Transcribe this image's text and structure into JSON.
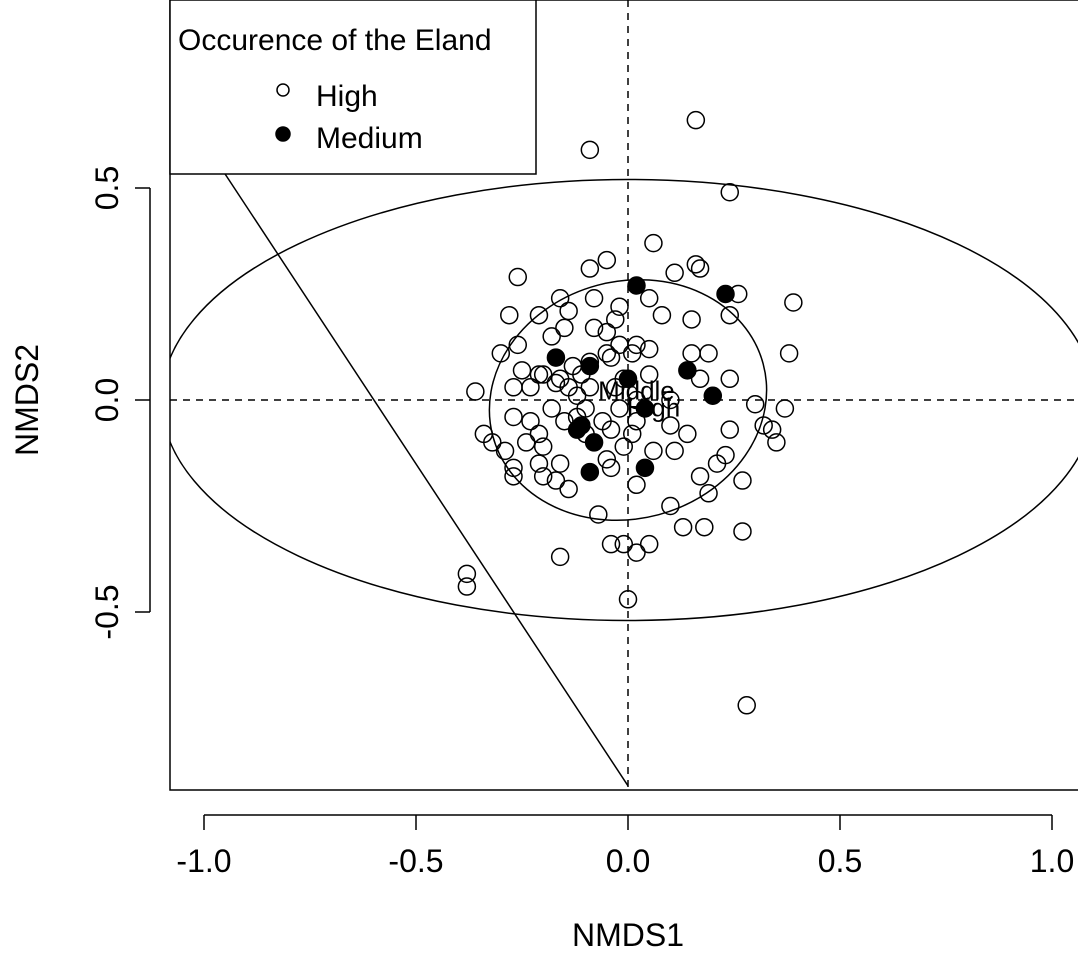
{
  "chart_data": {
    "type": "scatter",
    "title": "",
    "xlabel": "NMDS1",
    "ylabel": "NMDS2",
    "xlim": [
      -1.08,
      1.05
    ],
    "ylim": [
      -0.92,
      0.93
    ],
    "xticks": [
      -1.0,
      -0.5,
      0.0,
      0.5,
      1.0
    ],
    "xtick_labels": [
      "-1.0",
      "-0.5",
      "0.0",
      "0.5",
      "1.0"
    ],
    "yticks": [
      -0.5,
      0.0,
      0.5
    ],
    "ytick_labels": [
      "-0.5",
      "0.0",
      "0.5"
    ],
    "grid": false,
    "legend": {
      "title": "Occurence of the Eland",
      "placement": "top-left",
      "entries": [
        {
          "label": "High",
          "marker": "open-circle"
        },
        {
          "label": "Medium",
          "marker": "filled-circle"
        }
      ]
    },
    "reference_lines": {
      "x": 0.0,
      "y": 0.0,
      "style": "dashed"
    },
    "group_labels": [
      {
        "text": "Middle",
        "x": 0.02,
        "y": 0.02
      },
      {
        "text": "High",
        "x": 0.06,
        "y": -0.02
      }
    ],
    "ellipses": [
      {
        "name": "outer",
        "center": [
          0.0,
          0.0
        ],
        "rx": 1.1,
        "ry": 0.52,
        "angle_deg": 0
      },
      {
        "name": "inner",
        "center": [
          0.0,
          0.0
        ],
        "rx": 0.33,
        "ry": 0.28,
        "angle_deg": 15
      }
    ],
    "segments": [
      {
        "x1": -1.08,
        "y1": 0.73,
        "x2": 0.0,
        "y2": -0.91
      }
    ],
    "legend_box_bottom_y": 0.535,
    "legend_box_right_x": -0.22,
    "series": [
      {
        "name": "High",
        "marker": "open-circle",
        "points": [
          [
            0.16,
            0.66
          ],
          [
            -0.09,
            0.59
          ],
          [
            0.24,
            0.49
          ],
          [
            0.06,
            0.37
          ],
          [
            -0.05,
            0.33
          ],
          [
            0.16,
            0.32
          ],
          [
            0.17,
            0.31
          ],
          [
            -0.09,
            0.31
          ],
          [
            0.11,
            0.3
          ],
          [
            -0.26,
            0.29
          ],
          [
            0.39,
            0.23
          ],
          [
            -0.16,
            0.24
          ],
          [
            -0.08,
            0.24
          ],
          [
            0.05,
            0.24
          ],
          [
            -0.02,
            0.22
          ],
          [
            0.26,
            0.25
          ],
          [
            -0.14,
            0.21
          ],
          [
            0.08,
            0.2
          ],
          [
            -0.28,
            0.2
          ],
          [
            -0.21,
            0.2
          ],
          [
            0.15,
            0.19
          ],
          [
            0.24,
            0.2
          ],
          [
            -0.15,
            0.17
          ],
          [
            -0.08,
            0.17
          ],
          [
            -0.03,
            0.19
          ],
          [
            -0.05,
            0.16
          ],
          [
            -0.18,
            0.15
          ],
          [
            -0.26,
            0.13
          ],
          [
            -0.02,
            0.13
          ],
          [
            0.05,
            0.12
          ],
          [
            -0.05,
            0.11
          ],
          [
            0.01,
            0.11
          ],
          [
            0.02,
            0.13
          ],
          [
            0.15,
            0.11
          ],
          [
            0.19,
            0.11
          ],
          [
            0.38,
            0.11
          ],
          [
            -0.3,
            0.11
          ],
          [
            -0.04,
            0.1
          ],
          [
            -0.13,
            0.08
          ],
          [
            -0.09,
            0.09
          ],
          [
            -0.2,
            0.06
          ],
          [
            -0.25,
            0.07
          ],
          [
            -0.11,
            0.06
          ],
          [
            0.05,
            0.06
          ],
          [
            -0.01,
            0.05
          ],
          [
            -0.16,
            0.05
          ],
          [
            -0.17,
            0.04
          ],
          [
            0.24,
            0.05
          ],
          [
            0.17,
            0.05
          ],
          [
            -0.21,
            0.06
          ],
          [
            -0.09,
            0.03
          ],
          [
            -0.27,
            0.03
          ],
          [
            -0.14,
            0.03
          ],
          [
            -0.03,
            0.03
          ],
          [
            -0.36,
            0.02
          ],
          [
            -0.23,
            0.03
          ],
          [
            -0.12,
            0.01
          ],
          [
            0.02,
            0.0
          ],
          [
            0.1,
            0.0
          ],
          [
            0.3,
            -0.01
          ],
          [
            -0.18,
            -0.02
          ],
          [
            -0.02,
            -0.02
          ],
          [
            -0.1,
            -0.02
          ],
          [
            0.37,
            -0.02
          ],
          [
            -0.27,
            -0.04
          ],
          [
            -0.12,
            -0.04
          ],
          [
            -0.06,
            -0.05
          ],
          [
            0.02,
            -0.05
          ],
          [
            0.1,
            -0.06
          ],
          [
            -0.23,
            -0.05
          ],
          [
            -0.15,
            -0.05
          ],
          [
            0.32,
            -0.06
          ],
          [
            0.24,
            -0.07
          ],
          [
            0.34,
            -0.07
          ],
          [
            -0.34,
            -0.08
          ],
          [
            -0.04,
            -0.07
          ],
          [
            0.01,
            -0.08
          ],
          [
            0.14,
            -0.08
          ],
          [
            -0.21,
            -0.08
          ],
          [
            -0.1,
            -0.08
          ],
          [
            -0.32,
            -0.1
          ],
          [
            -0.24,
            -0.1
          ],
          [
            -0.2,
            -0.11
          ],
          [
            0.35,
            -0.1
          ],
          [
            -0.01,
            -0.11
          ],
          [
            0.11,
            -0.12
          ],
          [
            -0.29,
            -0.12
          ],
          [
            0.06,
            -0.12
          ],
          [
            0.23,
            -0.13
          ],
          [
            -0.05,
            -0.14
          ],
          [
            -0.16,
            -0.15
          ],
          [
            0.21,
            -0.15
          ],
          [
            -0.21,
            -0.15
          ],
          [
            -0.04,
            -0.16
          ],
          [
            -0.27,
            -0.16
          ],
          [
            -0.27,
            -0.18
          ],
          [
            -0.2,
            -0.18
          ],
          [
            0.17,
            -0.18
          ],
          [
            -0.17,
            -0.19
          ],
          [
            0.02,
            -0.2
          ],
          [
            0.27,
            -0.19
          ],
          [
            -0.14,
            -0.21
          ],
          [
            0.19,
            -0.22
          ],
          [
            0.1,
            -0.25
          ],
          [
            -0.07,
            -0.27
          ],
          [
            0.18,
            -0.3
          ],
          [
            0.13,
            -0.3
          ],
          [
            0.27,
            -0.31
          ],
          [
            -0.04,
            -0.34
          ],
          [
            -0.01,
            -0.34
          ],
          [
            0.05,
            -0.34
          ],
          [
            0.02,
            -0.36
          ],
          [
            -0.16,
            -0.37
          ],
          [
            -0.38,
            -0.41
          ],
          [
            -0.38,
            -0.44
          ],
          [
            0.0,
            -0.47
          ],
          [
            0.28,
            -0.72
          ]
        ]
      },
      {
        "name": "Medium",
        "marker": "filled-circle",
        "points": [
          [
            0.02,
            0.27
          ],
          [
            0.23,
            0.25
          ],
          [
            -0.17,
            0.1
          ],
          [
            -0.09,
            0.08
          ],
          [
            0.14,
            0.07
          ],
          [
            0.0,
            0.05
          ],
          [
            0.2,
            0.01
          ],
          [
            0.04,
            -0.02
          ],
          [
            -0.12,
            -0.07
          ],
          [
            -0.11,
            -0.06
          ],
          [
            -0.08,
            -0.1
          ],
          [
            0.04,
            -0.16
          ],
          [
            -0.09,
            -0.17
          ]
        ]
      }
    ]
  }
}
